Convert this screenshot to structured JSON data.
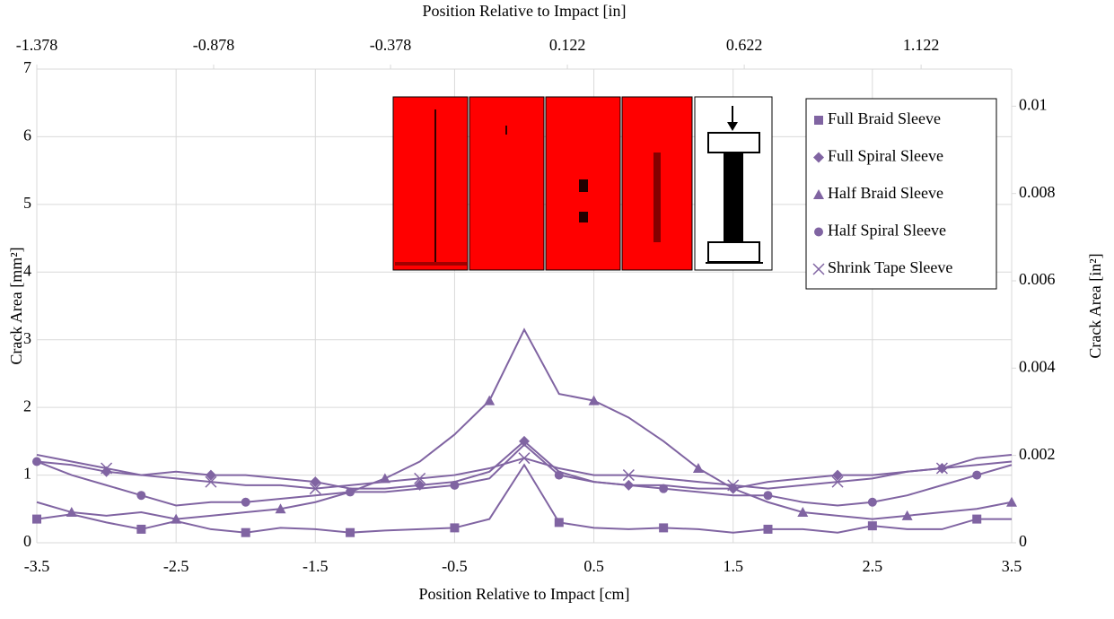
{
  "chart_data": {
    "type": "line",
    "xlabel": "Position Relative to Impact [cm]",
    "x2label": "Position Relative to Impact [in]",
    "ylabel": "Crack Area [mm²]",
    "y2label": "Crack Area [in²]",
    "xlim": [
      -3.5,
      3.5
    ],
    "xticks": [
      -3.5,
      -2.5,
      -1.5,
      -0.5,
      0.5,
      1.5,
      2.5,
      3.5
    ],
    "x2lim": [
      -1.378,
      1.378
    ],
    "x2ticks": [
      -1.378,
      -0.878,
      -0.378,
      0.122,
      0.622,
      1.122
    ],
    "ylim": [
      0,
      7
    ],
    "yticks": [
      0,
      1,
      2,
      3,
      4,
      5,
      6,
      7
    ],
    "y2lim": [
      0,
      0.01085
    ],
    "y2ticks": [
      0,
      0.002,
      0.004,
      0.006,
      0.008,
      0.01
    ],
    "grid": true,
    "legend": "upper right",
    "x": [
      -3.5,
      -3.25,
      -3,
      -2.75,
      -2.5,
      -2.25,
      -2,
      -1.75,
      -1.5,
      -1.25,
      -1,
      -0.75,
      -0.5,
      -0.25,
      0,
      0.25,
      0.5,
      0.75,
      1,
      1.25,
      1.5,
      1.75,
      2,
      2.25,
      2.5,
      2.75,
      3,
      3.25,
      3.5
    ],
    "series": [
      {
        "name": "Full Braid Sleeve",
        "color": "#8064a2",
        "marker": "square",
        "values": [
          0.35,
          0.42,
          0.3,
          0.2,
          0.32,
          0.2,
          0.15,
          0.22,
          0.2,
          0.15,
          0.18,
          0.2,
          0.22,
          0.35,
          1.15,
          0.3,
          0.22,
          0.2,
          0.22,
          0.2,
          0.15,
          0.2,
          0.2,
          0.15,
          0.25,
          0.2,
          0.2,
          0.35,
          0.35
        ]
      },
      {
        "name": "Full Spiral Sleeve",
        "color": "#8064a2",
        "marker": "diamond",
        "values": [
          1.2,
          1.15,
          1.05,
          1.0,
          1.05,
          1.0,
          1.0,
          0.95,
          0.9,
          0.8,
          0.8,
          0.85,
          0.9,
          1.05,
          1.5,
          1.05,
          0.9,
          0.85,
          0.85,
          0.8,
          0.8,
          0.9,
          0.95,
          1.0,
          1.0,
          1.05,
          1.1,
          1.15,
          1.2
        ]
      },
      {
        "name": "Half Braid Sleeve",
        "color": "#8064a2",
        "marker": "triangle",
        "values": [
          0.6,
          0.45,
          0.4,
          0.45,
          0.35,
          0.4,
          0.45,
          0.5,
          0.6,
          0.75,
          0.95,
          1.2,
          1.6,
          2.1,
          3.15,
          2.2,
          2.1,
          1.85,
          1.5,
          1.1,
          0.8,
          0.6,
          0.45,
          0.4,
          0.35,
          0.4,
          0.45,
          0.5,
          0.6
        ]
      },
      {
        "name": "Half Spiral Sleeve",
        "color": "#8064a2",
        "marker": "circle",
        "values": [
          1.2,
          1.0,
          0.85,
          0.7,
          0.55,
          0.6,
          0.6,
          0.65,
          0.7,
          0.75,
          0.75,
          0.8,
          0.85,
          0.95,
          1.45,
          1.0,
          0.9,
          0.85,
          0.8,
          0.75,
          0.7,
          0.7,
          0.6,
          0.55,
          0.6,
          0.7,
          0.85,
          1.0,
          1.15
        ]
      },
      {
        "name": "Shrink Tape Sleeve",
        "color": "#8064a2",
        "marker": "x",
        "values": [
          1.3,
          1.2,
          1.1,
          1.0,
          0.95,
          0.9,
          0.85,
          0.85,
          0.8,
          0.85,
          0.9,
          0.95,
          1.0,
          1.1,
          1.25,
          1.1,
          1.0,
          1.0,
          0.95,
          0.9,
          0.85,
          0.8,
          0.85,
          0.9,
          0.95,
          1.05,
          1.1,
          1.25,
          1.3
        ]
      }
    ]
  }
}
